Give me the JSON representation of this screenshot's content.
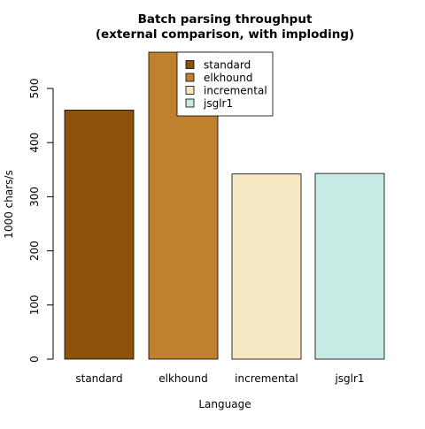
{
  "chart_data": {
    "type": "bar",
    "title_lines": [
      "Batch parsing throughput",
      "(external comparison, with imploding)"
    ],
    "xlabel": "Language",
    "ylabel": "1000 chars/s",
    "ylim": [
      0,
      570
    ],
    "y_ticks": [
      0,
      100,
      200,
      300,
      400,
      500
    ],
    "categories": [
      "standard",
      "elkhound",
      "incremental",
      "jsglr1"
    ],
    "values": [
      460,
      567,
      342,
      343
    ],
    "colors": [
      "#8C510A",
      "#BF812D",
      "#F6E8C3",
      "#C7EAE5"
    ],
    "legend": {
      "position": "top-center",
      "entries": [
        "standard",
        "elkhound",
        "incremental",
        "jsglr1"
      ]
    }
  }
}
